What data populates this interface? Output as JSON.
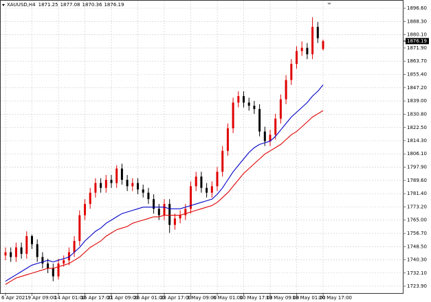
{
  "chart_data": {
    "type": "candlestick",
    "symbol": "XAUUSD,H4",
    "up_color": "#e00000",
    "down_color": "#000000",
    "grid": true,
    "categories": [
      "6 Apr 2021",
      null,
      null,
      null,
      null,
      "9 Apr 09:00",
      null,
      null,
      null,
      null,
      "14 Apr 01:00",
      null,
      null,
      null,
      null,
      "16 Apr 17:00",
      null,
      null,
      null,
      null,
      "21 Apr 09:00",
      null,
      null,
      null,
      null,
      "26 Apr 01:00",
      null,
      null,
      null,
      null,
      "28 Apr 17:00",
      null,
      null,
      null,
      null,
      "3 May 09:00",
      null,
      null,
      null,
      null,
      "6 May 01:00",
      null,
      null,
      null,
      null,
      "10 May 17:00",
      null,
      null,
      null,
      null,
      "13 May 09:00",
      null,
      null,
      null,
      null,
      "18 May 01:00",
      null,
      null,
      null,
      null,
      "20 May 17:00"
    ],
    "open": [
      1743,
      1745,
      1742,
      1748,
      1744,
      1755,
      1750,
      1742,
      1738,
      1735,
      1730,
      1738,
      1740,
      1745,
      1752,
      1768,
      1775,
      1782,
      1788,
      1785,
      1790,
      1788,
      1797,
      1790,
      1786,
      1788,
      1784,
      1782,
      1778,
      1772,
      1768,
      1775,
      1762,
      1766,
      1768,
      1772,
      1786,
      1792,
      1785,
      1782,
      1786,
      1795,
      1808,
      1822,
      1838,
      1842,
      1838,
      1836,
      1834,
      1820,
      1814,
      1818,
      1828,
      1840,
      1852,
      1862,
      1870,
      1872,
      1868,
      1885,
      1871.25
    ],
    "high": [
      1748,
      1748,
      1751,
      1751,
      1758,
      1756,
      1753,
      1745,
      1741,
      1738,
      1741,
      1743,
      1748,
      1755,
      1771,
      1778,
      1785,
      1791,
      1791,
      1793,
      1793,
      1799,
      1800,
      1793,
      1791,
      1791,
      1787,
      1785,
      1781,
      1775,
      1778,
      1778,
      1769,
      1771,
      1775,
      1789,
      1795,
      1795,
      1788,
      1789,
      1798,
      1811,
      1825,
      1841,
      1845,
      1845,
      1841,
      1839,
      1837,
      1823,
      1821,
      1831,
      1843,
      1855,
      1865,
      1873,
      1876,
      1875,
      1891,
      1888,
      1877.08
    ],
    "low": [
      1740,
      1739,
      1739,
      1741,
      1741,
      1747,
      1739,
      1735,
      1732,
      1727,
      1728,
      1736,
      1737,
      1742,
      1749,
      1765,
      1772,
      1779,
      1782,
      1782,
      1785,
      1785,
      1787,
      1783,
      1783,
      1781,
      1779,
      1775,
      1769,
      1765,
      1765,
      1757,
      1759,
      1763,
      1765,
      1769,
      1783,
      1782,
      1779,
      1779,
      1783,
      1792,
      1805,
      1819,
      1835,
      1835,
      1833,
      1831,
      1817,
      1811,
      1811,
      1815,
      1825,
      1837,
      1849,
      1859,
      1867,
      1865,
      1865,
      1875,
      1870.36
    ],
    "close": [
      1745,
      1742,
      1748,
      1744,
      1755,
      1750,
      1742,
      1738,
      1735,
      1730,
      1738,
      1740,
      1745,
      1752,
      1768,
      1775,
      1782,
      1788,
      1785,
      1790,
      1788,
      1797,
      1790,
      1786,
      1788,
      1784,
      1782,
      1778,
      1772,
      1768,
      1775,
      1762,
      1766,
      1768,
      1772,
      1786,
      1792,
      1785,
      1782,
      1786,
      1795,
      1808,
      1822,
      1838,
      1842,
      1838,
      1836,
      1834,
      1820,
      1814,
      1818,
      1828,
      1840,
      1852,
      1862,
      1870,
      1872,
      1868,
      1885,
      1878,
      1876.19
    ],
    "series": [
      {
        "color": "#0000c8",
        "values": [
          1727,
          1729,
          1731,
          1733,
          1735,
          1737,
          1738,
          1739,
          1740,
          1739,
          1740,
          1741,
          1742,
          1745,
          1748,
          1752,
          1755,
          1758,
          1760,
          1763,
          1765,
          1767,
          1769,
          1770,
          1771,
          1772,
          1773,
          1773,
          1773,
          1773,
          1773,
          1772,
          1772,
          1772,
          1773,
          1774,
          1775,
          1776,
          1777,
          1778,
          1781,
          1785,
          1790,
          1795,
          1799,
          1803,
          1807,
          1810,
          1812,
          1813,
          1814,
          1817,
          1821,
          1825,
          1829,
          1832,
          1835,
          1838,
          1842,
          1845,
          1849
        ]
      },
      {
        "color": "#e00000",
        "values": [
          1725,
          1727,
          1729,
          1730,
          1731,
          1732,
          1733,
          1734,
          1735,
          1735,
          1736,
          1737,
          1738,
          1740,
          1742,
          1745,
          1748,
          1750,
          1752,
          1755,
          1757,
          1759,
          1760,
          1761,
          1763,
          1764,
          1765,
          1766,
          1767,
          1767,
          1768,
          1768,
          1768,
          1768,
          1769,
          1770,
          1771,
          1772,
          1773,
          1774,
          1776,
          1779,
          1782,
          1786,
          1790,
          1794,
          1797,
          1800,
          1803,
          1806,
          1808,
          1810,
          1812,
          1815,
          1818,
          1820,
          1823,
          1826,
          1829,
          1831,
          1833
        ]
      }
    ],
    "ylim": [
      1719.2,
      1901.72
    ],
    "yticks": [
      {
        "value": 1896.6,
        "label": "1896.60"
      },
      {
        "value": 1888.3,
        "label": "1888.30"
      },
      {
        "value": 1880.1,
        "label": "1880.10"
      },
      {
        "value": 1871.9,
        "label": "1871.90"
      },
      {
        "value": 1863.7,
        "label": "1863.70"
      },
      {
        "value": 1855.4,
        "label": "1855.40"
      },
      {
        "value": 1847.2,
        "label": "1847.20"
      },
      {
        "value": 1839,
        "label": "1839.00"
      },
      {
        "value": 1830.8,
        "label": "1830.80"
      },
      {
        "value": 1822.5,
        "label": "1822.50"
      },
      {
        "value": 1814.3,
        "label": "1814.30"
      },
      {
        "value": 1806.1,
        "label": "1806.10"
      },
      {
        "value": 1797.9,
        "label": "1797.90"
      },
      {
        "value": 1789.6,
        "label": "1789.60"
      },
      {
        "value": 1781.4,
        "label": "1781.40"
      },
      {
        "value": 1773.2,
        "label": "1773.20"
      },
      {
        "value": 1765,
        "label": "1765.00"
      },
      {
        "value": 1756.7,
        "label": "1756.70"
      },
      {
        "value": 1748.5,
        "label": "1748.50"
      },
      {
        "value": 1740.3,
        "label": "1740.30"
      },
      {
        "value": 1732.1,
        "label": "1732.10"
      },
      {
        "value": 1723.9,
        "label": "1723.90"
      }
    ]
  }
}
